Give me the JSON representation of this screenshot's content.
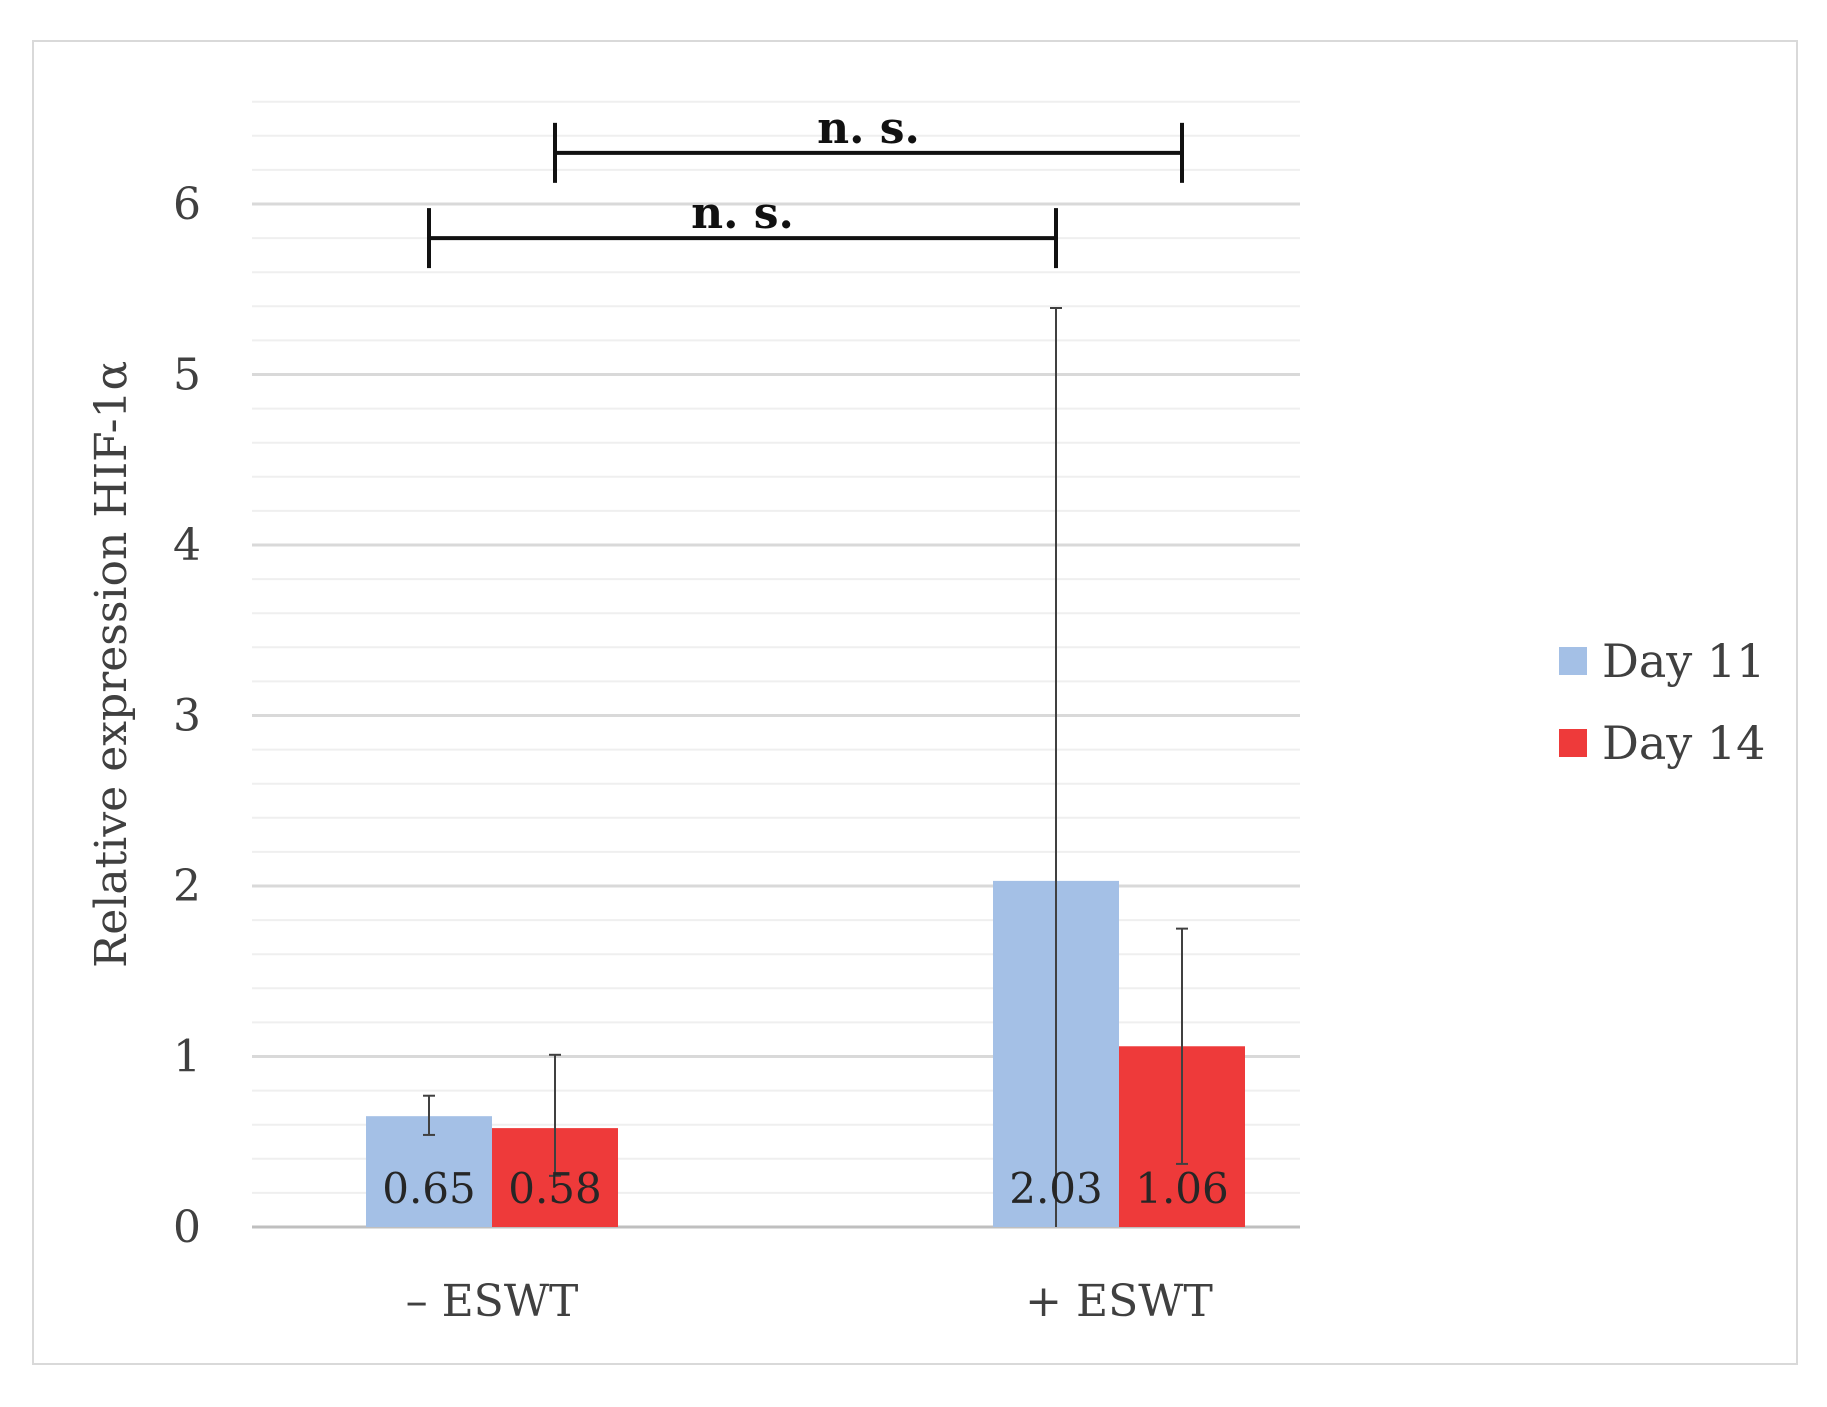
{
  "chart_data": {
    "type": "bar",
    "title": "",
    "xlabel": "",
    "ylabel": "Relative expression HIF-1α",
    "ylim": [
      0,
      6.6
    ],
    "yticks": [
      0,
      1,
      2,
      3,
      4,
      5,
      6
    ],
    "minor_grid_step": 0.2,
    "grid": true,
    "legend_position": "right",
    "categories": [
      "– ESWT",
      "+ ESWT"
    ],
    "series": [
      {
        "name": "Day 11",
        "color": "#a4c0e6",
        "values": [
          0.65,
          2.03
        ],
        "labels": [
          "0.65",
          "2.03"
        ],
        "error_low": [
          0.54,
          0.0
        ],
        "error_high": [
          0.77,
          5.39
        ]
      },
      {
        "name": "Day 14",
        "color": "#ee3a3a",
        "values": [
          0.58,
          1.06
        ],
        "labels": [
          "0.58",
          "1.06"
        ],
        "error_low": [
          0.3,
          0.37
        ],
        "error_high": [
          1.01,
          1.75
        ]
      }
    ],
    "significance": [
      {
        "label": "n. s.",
        "from": {
          "category": 0,
          "series": 0
        },
        "to": {
          "category": 1,
          "series": 0
        },
        "y": 5.8
      },
      {
        "label": "n. s.",
        "from": {
          "category": 0,
          "series": 1
        },
        "to": {
          "category": 1,
          "series": 1
        },
        "y": 6.3
      }
    ]
  }
}
